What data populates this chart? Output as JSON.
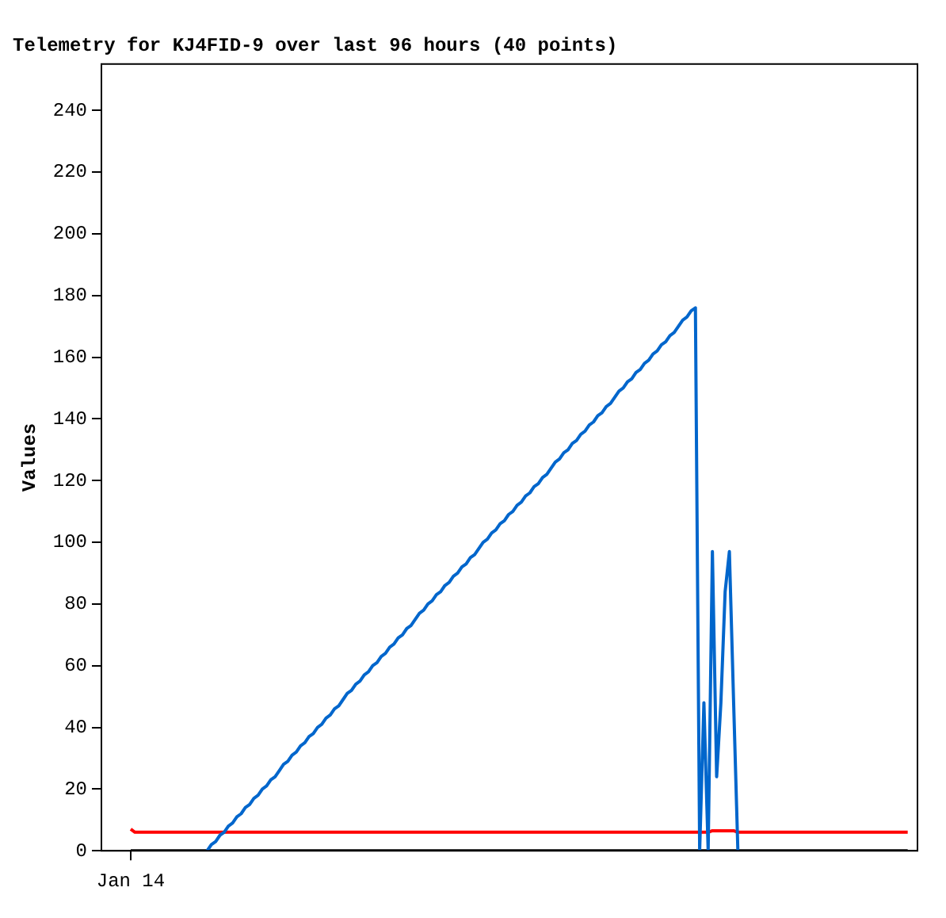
{
  "chart_data": {
    "type": "line",
    "title": "Telemetry for KJ4FID-9 over last 96 hours (40 points)",
    "ylabel": "Values",
    "categories": [
      "Jan 14",
      null,
      null,
      null,
      null,
      null,
      null,
      null,
      null,
      null,
      null,
      null,
      null,
      null,
      null,
      null,
      null,
      null,
      null,
      null,
      null,
      null,
      null,
      null,
      null,
      null,
      null,
      null,
      null,
      null,
      null,
      null,
      null,
      null,
      null,
      null,
      null,
      null,
      null,
      null,
      null,
      null,
      null,
      null,
      null,
      null,
      null,
      null,
      null,
      null,
      null,
      null,
      null,
      null,
      null,
      null,
      null,
      null,
      null,
      null,
      null,
      null,
      null,
      null,
      null,
      null,
      null,
      null,
      null,
      null,
      null,
      null,
      null,
      null,
      null,
      null,
      null,
      null,
      null,
      null,
      null,
      null,
      null,
      null,
      null,
      null,
      null,
      null,
      null,
      null,
      null,
      null,
      null,
      null,
      null,
      null,
      null,
      null,
      null,
      null,
      null,
      null,
      null,
      null,
      null,
      null,
      null,
      null,
      null,
      null,
      null,
      null,
      null,
      null,
      null,
      null,
      null,
      null,
      null,
      null,
      null,
      null,
      null,
      null,
      null,
      null,
      null,
      null,
      null,
      null,
      null,
      null,
      null,
      null,
      null,
      null,
      null,
      null,
      null,
      null,
      null,
      null,
      null,
      null,
      null,
      null,
      null,
      null,
      null,
      null,
      null,
      null,
      null,
      null,
      null,
      null,
      null,
      null,
      null,
      null,
      null,
      null,
      null,
      null,
      null,
      null,
      null,
      null,
      null,
      null,
      null,
      null,
      null,
      null,
      null,
      null,
      null,
      null,
      null,
      null,
      null,
      null,
      null,
      null
    ],
    "ylim": [
      0,
      255
    ],
    "yticks": [
      0,
      20,
      40,
      60,
      80,
      100,
      120,
      140,
      160,
      180,
      200,
      220,
      240
    ],
    "grid": false,
    "legend": false,
    "marker": "none",
    "line_style": "solid",
    "series": [
      {
        "color": "#0066cc",
        "values": [
          null,
          null,
          null,
          null,
          null,
          null,
          null,
          null,
          null,
          null,
          null,
          null,
          null,
          null,
          null,
          null,
          null,
          null,
          0,
          2,
          3,
          5,
          6,
          8,
          9,
          11,
          12,
          14,
          15,
          17,
          18,
          20,
          21,
          23,
          24,
          26,
          28,
          29,
          31,
          32,
          34,
          35,
          37,
          38,
          40,
          41,
          43,
          44,
          46,
          47,
          49,
          51,
          52,
          54,
          55,
          57,
          58,
          60,
          61,
          63,
          64,
          66,
          67,
          69,
          70,
          72,
          73,
          75,
          77,
          78,
          80,
          81,
          83,
          84,
          86,
          87,
          89,
          90,
          92,
          93,
          95,
          96,
          98,
          100,
          101,
          103,
          104,
          106,
          107,
          109,
          110,
          112,
          113,
          115,
          116,
          118,
          119,
          121,
          122,
          124,
          126,
          127,
          129,
          130,
          132,
          133,
          135,
          136,
          138,
          139,
          141,
          142,
          144,
          145,
          147,
          149,
          150,
          152,
          153,
          155,
          156,
          158,
          159,
          161,
          162,
          164,
          165,
          167,
          168,
          170,
          172,
          173,
          175,
          176,
          0,
          48,
          0,
          97,
          24,
          48,
          84,
          97,
          48,
          0,
          null,
          null,
          null,
          null,
          null,
          null,
          null,
          null,
          null,
          null,
          null,
          null,
          null,
          null,
          null,
          null,
          null,
          null,
          null,
          null,
          null,
          null,
          null,
          null,
          null,
          null,
          null,
          null,
          null,
          null,
          null,
          null,
          null,
          null,
          null,
          null,
          null,
          null,
          null,
          null
        ]
      },
      {
        "color": "#ff0000",
        "values": [
          7,
          6,
          6,
          6,
          6,
          6,
          6,
          6,
          6,
          6,
          6,
          6,
          6,
          6,
          6,
          6,
          6,
          6,
          6,
          6,
          6,
          6,
          6,
          6,
          6,
          6,
          6,
          6,
          6,
          6,
          6,
          6,
          6,
          6,
          6,
          6,
          6,
          6,
          6,
          6,
          6,
          6,
          6,
          6,
          6,
          6,
          6,
          6,
          6,
          6,
          6,
          6,
          6,
          6,
          6,
          6,
          6,
          6,
          6,
          6,
          6,
          6,
          6,
          6,
          6,
          6,
          6,
          6,
          6,
          6,
          6,
          6,
          6,
          6,
          6,
          6,
          6,
          6,
          6,
          6,
          6,
          6,
          6,
          6,
          6,
          6,
          6,
          6,
          6,
          6,
          6,
          6,
          6,
          6,
          6,
          6,
          6,
          6,
          6,
          6,
          6,
          6,
          6,
          6,
          6,
          6,
          6,
          6,
          6,
          6,
          6,
          6,
          6,
          6,
          6,
          6,
          6,
          6,
          6,
          6,
          6,
          6,
          6,
          6,
          6,
          6,
          6,
          6,
          6,
          6,
          6,
          6,
          6,
          6,
          6,
          6,
          6,
          6.5,
          6.5,
          6.5,
          6.5,
          6.5,
          6.5,
          6,
          6,
          6,
          6,
          6,
          6,
          6,
          6,
          6,
          6,
          6,
          6,
          6,
          6,
          6,
          6,
          6,
          6,
          6,
          6,
          6,
          6,
          6,
          6,
          6,
          6,
          6,
          6,
          6,
          6,
          6,
          6,
          6,
          6,
          6,
          6,
          6,
          6,
          6,
          6,
          6
        ]
      },
      {
        "color": "#000000",
        "values": [
          0,
          0,
          0,
          0,
          0,
          0,
          0,
          0,
          0,
          0,
          0,
          0,
          0,
          0,
          0,
          0,
          0,
          0,
          0,
          0,
          0,
          0,
          0,
          0,
          0,
          0,
          0,
          0,
          0,
          0,
          0,
          0,
          0,
          0,
          0,
          0,
          0,
          0,
          0,
          0,
          0,
          0,
          0,
          0,
          0,
          0,
          0,
          0,
          0,
          0,
          0,
          0,
          0,
          0,
          0,
          0,
          0,
          0,
          0,
          0,
          0,
          0,
          0,
          0,
          0,
          0,
          0,
          0,
          0,
          0,
          0,
          0,
          0,
          0,
          0,
          0,
          0,
          0,
          0,
          0,
          0,
          0,
          0,
          0,
          0,
          0,
          0,
          0,
          0,
          0,
          0,
          0,
          0,
          0,
          0,
          0,
          0,
          0,
          0,
          0,
          0,
          0,
          0,
          0,
          0,
          0,
          0,
          0,
          0,
          0,
          0,
          0,
          0,
          0,
          0,
          0,
          0,
          0,
          0,
          0,
          0,
          0,
          0,
          0,
          0,
          0,
          0,
          0,
          0,
          0,
          0,
          0,
          0,
          0,
          0,
          0,
          0,
          0,
          0,
          0,
          0,
          0,
          0,
          0,
          0,
          0,
          0,
          0,
          0,
          0,
          0,
          0,
          0,
          0,
          0,
          0,
          0,
          0,
          0,
          0,
          0,
          0,
          0,
          0,
          0,
          0,
          0,
          0,
          0,
          0,
          0,
          0,
          0,
          0,
          0,
          0,
          0,
          0,
          0,
          0,
          0,
          0,
          0,
          0
        ]
      }
    ]
  }
}
